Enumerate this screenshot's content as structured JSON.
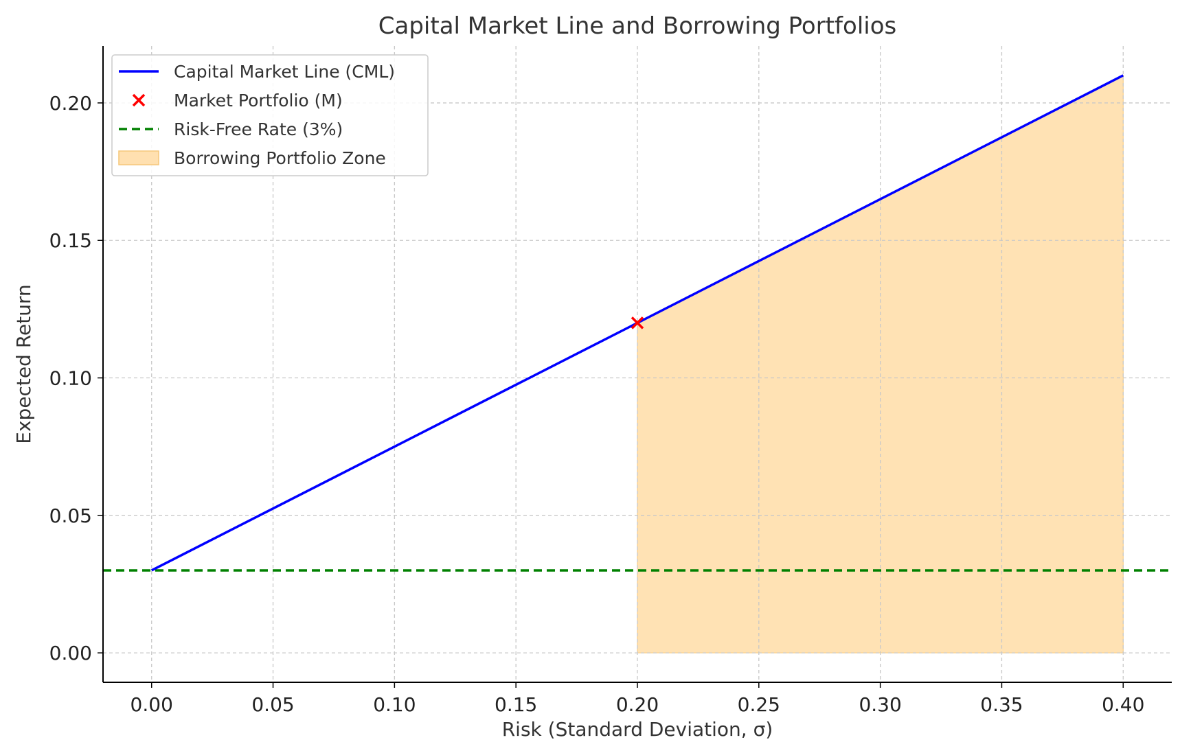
{
  "chart_data": {
    "type": "line",
    "title": "Capital Market Line and Borrowing Portfolios",
    "xlabel": "Risk (Standard Deviation, σ)",
    "ylabel": "Expected Return",
    "xlim": [
      -0.02,
      0.42
    ],
    "ylim": [
      -0.0107,
      0.2207
    ],
    "xticks": [
      0.0,
      0.05,
      0.1,
      0.15,
      0.2,
      0.25,
      0.3,
      0.35,
      0.4
    ],
    "xtick_labels": [
      "0.00",
      "0.05",
      "0.10",
      "0.15",
      "0.20",
      "0.25",
      "0.30",
      "0.35",
      "0.40"
    ],
    "yticks": [
      0.0,
      0.05,
      0.1,
      0.15,
      0.2
    ],
    "ytick_labels": [
      "0.00",
      "0.05",
      "0.10",
      "0.15",
      "0.20"
    ],
    "grid": true,
    "legend_position": "top-left",
    "series": [
      {
        "name": "Capital Market Line (CML)",
        "kind": "line",
        "color": "#0000ff",
        "x": [
          0.0,
          0.4
        ],
        "y": [
          0.03,
          0.21
        ]
      },
      {
        "name": "Market Portfolio (M)",
        "kind": "marker",
        "color": "#ff0000",
        "x": [
          0.2
        ],
        "y": [
          0.12
        ]
      },
      {
        "name": "Risk-Free Rate (3%)",
        "kind": "hline",
        "color": "#008000",
        "y": 0.03
      },
      {
        "name": "Borrowing Portfolio Zone",
        "kind": "fill",
        "color": "#ffe0b0",
        "x": [
          0.2,
          0.4
        ],
        "y_lower": [
          0.0,
          0.0
        ],
        "y_upper": [
          0.12,
          0.21
        ]
      }
    ]
  }
}
